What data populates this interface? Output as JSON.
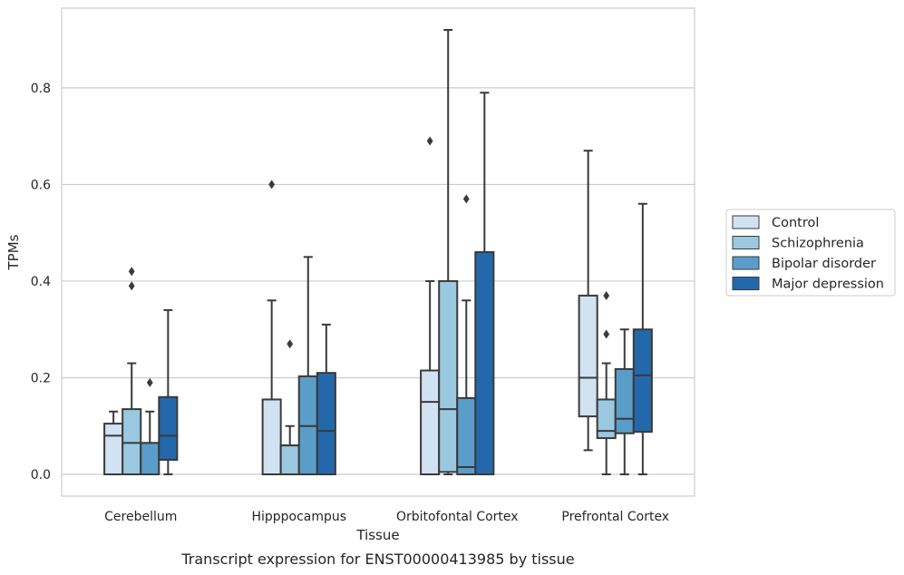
{
  "caption": "Transcript expression for ENST00000413985 by tissue",
  "chart_data": {
    "type": "box",
    "xlabel": "Tissue",
    "ylabel": "TPMs",
    "ylim": [
      -0.045,
      0.965
    ],
    "yticks": [
      "0.0",
      "0.2",
      "0.4",
      "0.6",
      "0.8"
    ],
    "grid": true,
    "legend_position": "right",
    "categories": [
      "Cerebellum",
      "Hipppocampus",
      "Orbitofontal Cortex",
      "Prefrontal Cortex"
    ],
    "series": [
      {
        "name": "Control",
        "color": "#d1e2f2",
        "boxes": [
          {
            "whisker_low": 0.0,
            "q1": 0.0,
            "median": 0.08,
            "q3": 0.105,
            "whisker_high": 0.13,
            "outliers": []
          },
          {
            "whisker_low": 0.0,
            "q1": 0.0,
            "median": 0.0,
            "q3": 0.155,
            "whisker_high": 0.36,
            "outliers": [
              0.6
            ]
          },
          {
            "whisker_low": 0.0,
            "q1": 0.0,
            "median": 0.15,
            "q3": 0.215,
            "whisker_high": 0.4,
            "outliers": [
              0.69
            ]
          },
          {
            "whisker_low": 0.05,
            "q1": 0.12,
            "median": 0.2,
            "q3": 0.37,
            "whisker_high": 0.67,
            "outliers": []
          }
        ]
      },
      {
        "name": "Schizophrenia",
        "color": "#9ac8e0",
        "boxes": [
          {
            "whisker_low": 0.0,
            "q1": 0.0,
            "median": 0.065,
            "q3": 0.135,
            "whisker_high": 0.23,
            "outliers": [
              0.39,
              0.42
            ]
          },
          {
            "whisker_low": 0.0,
            "q1": 0.0,
            "median": 0.06,
            "q3": 0.06,
            "whisker_high": 0.1,
            "outliers": [
              0.27
            ]
          },
          {
            "whisker_low": 0.0,
            "q1": 0.005,
            "median": 0.135,
            "q3": 0.4,
            "whisker_high": 0.92,
            "outliers": []
          },
          {
            "whisker_low": 0.0,
            "q1": 0.075,
            "median": 0.09,
            "q3": 0.155,
            "whisker_high": 0.23,
            "outliers": [
              0.29,
              0.37
            ]
          }
        ]
      },
      {
        "name": "Bipolar disorder",
        "color": "#5b9dc9",
        "boxes": [
          {
            "whisker_low": 0.0,
            "q1": 0.0,
            "median": 0.065,
            "q3": 0.065,
            "whisker_high": 0.13,
            "outliers": [
              0.19
            ]
          },
          {
            "whisker_low": 0.0,
            "q1": 0.0,
            "median": 0.1,
            "q3": 0.203,
            "whisker_high": 0.45,
            "outliers": []
          },
          {
            "whisker_low": 0.0,
            "q1": 0.0,
            "median": 0.015,
            "q3": 0.158,
            "whisker_high": 0.36,
            "outliers": [
              0.57
            ]
          },
          {
            "whisker_low": 0.0,
            "q1": 0.085,
            "median": 0.115,
            "q3": 0.218,
            "whisker_high": 0.3,
            "outliers": []
          }
        ]
      },
      {
        "name": "Major depression",
        "color": "#2468ac",
        "boxes": [
          {
            "whisker_low": 0.0,
            "q1": 0.03,
            "median": 0.08,
            "q3": 0.16,
            "whisker_high": 0.34,
            "outliers": []
          },
          {
            "whisker_low": 0.0,
            "q1": 0.0,
            "median": 0.09,
            "q3": 0.21,
            "whisker_high": 0.31,
            "outliers": []
          },
          {
            "whisker_low": 0.0,
            "q1": 0.0,
            "median": 0.0,
            "q3": 0.46,
            "whisker_high": 0.79,
            "outliers": []
          },
          {
            "whisker_low": 0.0,
            "q1": 0.088,
            "median": 0.205,
            "q3": 0.3,
            "whisker_high": 0.56,
            "outliers": []
          }
        ]
      }
    ]
  }
}
